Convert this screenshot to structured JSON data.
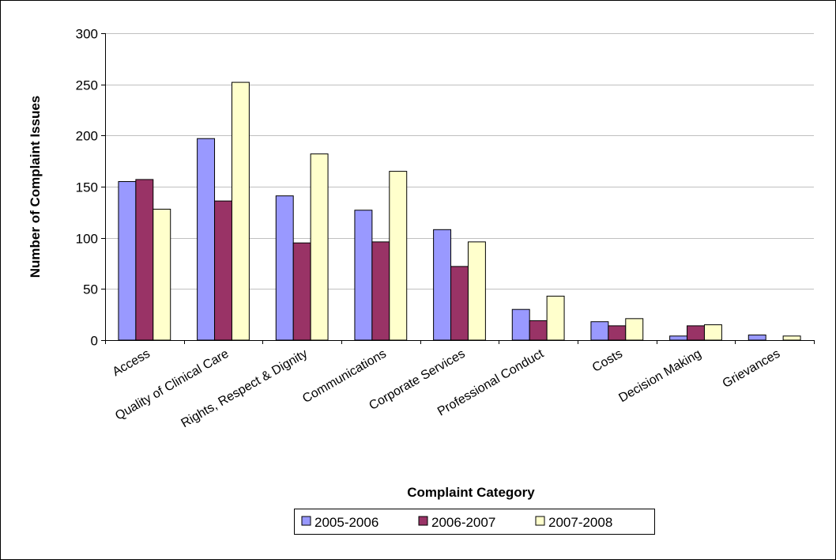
{
  "chart_data": {
    "type": "bar",
    "x_label": "Complaint Category",
    "y_label": "Number of Complaint Issues",
    "categories": [
      "Access",
      "Quality of Clinical Care",
      "Rights, Respect & Dignity",
      "Communications",
      "Corporate Services",
      "Professional Conduct",
      "Costs",
      "Decision Making",
      "Grievances"
    ],
    "series": [
      {
        "name": "2005-2006",
        "color": "#9999ff",
        "values": [
          155,
          197,
          141,
          127,
          108,
          30,
          18,
          4,
          5
        ]
      },
      {
        "name": "2006-2007",
        "color": "#993366",
        "values": [
          157,
          136,
          95,
          96,
          72,
          19,
          14,
          14,
          0
        ]
      },
      {
        "name": "2007-2008",
        "color": "#ffffcc",
        "values": [
          128,
          252,
          182,
          165,
          96,
          43,
          21,
          15,
          4
        ]
      }
    ],
    "ylim": [
      0,
      300
    ],
    "yticks": [
      0,
      50,
      100,
      150,
      200,
      250,
      300
    ],
    "grid": true,
    "legend": "bottom"
  }
}
